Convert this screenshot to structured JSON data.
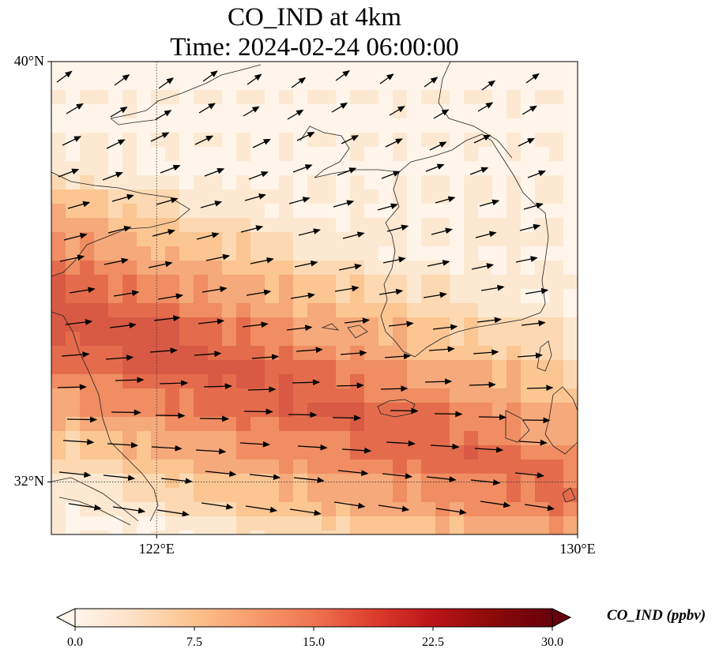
{
  "title": {
    "line1": "CO_IND at 4km",
    "line2": "Time: 2024-02-24 06:00:00"
  },
  "map": {
    "extent": {
      "lon_min": 120,
      "lon_max": 130,
      "lat_min": 31,
      "lat_max": 40
    },
    "lat_ticks": [
      {
        "lat": 40,
        "label": "40°N"
      },
      {
        "lat": 32,
        "label": "32°N"
      }
    ],
    "lon_ticks": [
      {
        "lon": 122,
        "label": "122°E"
      },
      {
        "lon": 130,
        "label": "130°E"
      }
    ],
    "gridlines": {
      "lat": 32,
      "lon": 122,
      "style": "dotted"
    },
    "variable": "CO_IND",
    "level": "4km",
    "colormap": [
      "#fff5eb",
      "#fee6ce",
      "#fdd0a2",
      "#fdae6b",
      "#fd8d3c",
      "#f16913",
      "#d94801",
      "#a63603",
      "#7f2704"
    ],
    "field_colors": [
      "#fff5eb",
      "#fde9d2",
      "#fcd9b2",
      "#fbc692",
      "#f6a97b",
      "#f08d62",
      "#e46c4c",
      "#d85a45"
    ],
    "wind_vectors_shown": true,
    "coastlines_shown": true
  },
  "colorbar": {
    "label": "CO_IND (ppbv)",
    "min": 0,
    "max": 30,
    "extend": "both",
    "ticks": [
      "0.0",
      "7.5",
      "15.0",
      "22.5",
      "30.0"
    ],
    "colors": [
      "#fff5eb",
      "#fde0c5",
      "#fdc28c",
      "#f79c6c",
      "#ef7450",
      "#dd3d2d",
      "#bb1419",
      "#8b0a0a",
      "#67000d"
    ]
  }
}
